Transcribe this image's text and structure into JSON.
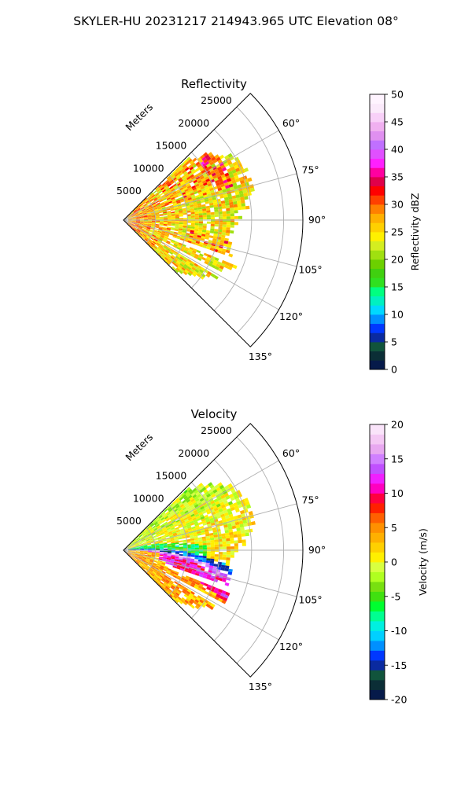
{
  "figure": {
    "title": "SKYLER-HU  20231217  214943.965 UTC Elevation 08°"
  },
  "chart_data": [
    {
      "type": "heatmap",
      "subtype": "polar-sector-ppi",
      "title": "Reflectivity",
      "range_label": "Meters",
      "range_ticks": [
        5000,
        10000,
        15000,
        20000,
        25000
      ],
      "range_max": 28000,
      "data_range_max": 21000,
      "azimuth_ticks": [
        "60°",
        "75°",
        "90°",
        "105°",
        "120°",
        "135°"
      ],
      "azimuth_range_deg": [
        45,
        135
      ],
      "colorbar": {
        "label": "Reflectivity dBZ",
        "min": 0,
        "max": 50,
        "ticks": [
          0,
          5,
          10,
          15,
          20,
          25,
          30,
          35,
          40,
          45,
          50
        ]
      },
      "field_description_values": {
        "typical_dbz": [
          15,
          28
        ],
        "max_dbz_near_radar": 38
      }
    },
    {
      "type": "heatmap",
      "subtype": "polar-sector-ppi",
      "title": "Velocity",
      "range_label": "Meters",
      "range_ticks": [
        5000,
        10000,
        15000,
        20000,
        25000
      ],
      "range_max": 28000,
      "data_range_max": 21000,
      "azimuth_ticks": [
        "60°",
        "75°",
        "90°",
        "105°",
        "120°",
        "135°"
      ],
      "azimuth_range_deg": [
        45,
        135
      ],
      "colorbar": {
        "label": "Velocity (m/s)",
        "min": -20,
        "max": 20,
        "ticks": [
          -20,
          -15,
          -10,
          -5,
          0,
          5,
          10,
          15,
          20
        ]
      }
    }
  ],
  "colors": {
    "grid": "#b0b0b0",
    "axis": "#000000",
    "reflectivity_scale": [
      "#061a4a",
      "#0b2e36",
      "#11543c",
      "#0a2aa0",
      "#0038ff",
      "#0090ff",
      "#00d8ff",
      "#00f0c0",
      "#00ff80",
      "#30e020",
      "#40d010",
      "#6cd000",
      "#a0e010",
      "#d4ee20",
      "#fff000",
      "#ffd000",
      "#ffb000",
      "#ff8000",
      "#ff4000",
      "#ff0000",
      "#e0004a",
      "#ff00a0",
      "#ff20ff",
      "#e050ff",
      "#c070ff",
      "#e090f0",
      "#f0b0f0",
      "#f8d0f8",
      "#fbeafb",
      "#fff4ff"
    ],
    "velocity_scale": [
      "#061a4a",
      "#0b2e36",
      "#11543c",
      "#0a2aa0",
      "#0038ff",
      "#0090ff",
      "#00d0ff",
      "#00f0e0",
      "#00ff90",
      "#00ff30",
      "#40e010",
      "#78e010",
      "#b0ff20",
      "#d8ff40",
      "#fff000",
      "#ffd000",
      "#ffb000",
      "#ff9000",
      "#ff6000",
      "#ff2000",
      "#ff0040",
      "#ff00c0",
      "#f020ff",
      "#c050ff",
      "#d080ff",
      "#e8a8f0",
      "#f4c8f4",
      "#fae4fa"
    ]
  }
}
